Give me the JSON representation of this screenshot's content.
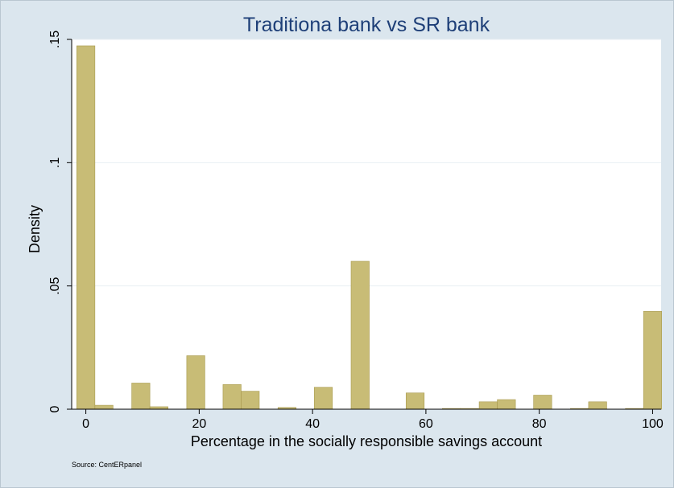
{
  "chart_data": {
    "type": "bar",
    "title": "Traditiona bank vs SR bank",
    "xlabel": "Percentage in the socially responsible savings account",
    "ylabel": "Density",
    "note": "Source: CentERpanel",
    "xlim": [
      -2.5,
      101.5
    ],
    "ylim": [
      0,
      0.15
    ],
    "bin_width": 3.2,
    "x_ticks": [
      {
        "value": 0,
        "label": "0"
      },
      {
        "value": 20,
        "label": "20"
      },
      {
        "value": 40,
        "label": "40"
      },
      {
        "value": 60,
        "label": "60"
      },
      {
        "value": 80,
        "label": "80"
      },
      {
        "value": 100,
        "label": "100"
      }
    ],
    "y_ticks": [
      {
        "value": 0,
        "label": "0"
      },
      {
        "value": 0.05,
        "label": ".05"
      },
      {
        "value": 0.1,
        "label": ".1"
      },
      {
        "value": 0.15,
        "label": ".15"
      }
    ],
    "bars": [
      {
        "x": 0.0,
        "y": 0.1474
      },
      {
        "x": 3.2,
        "y": 0.0016
      },
      {
        "x": 9.7,
        "y": 0.0106
      },
      {
        "x": 12.9,
        "y": 0.001
      },
      {
        "x": 19.4,
        "y": 0.0217
      },
      {
        "x": 25.8,
        "y": 0.01
      },
      {
        "x": 29.0,
        "y": 0.0073
      },
      {
        "x": 35.5,
        "y": 0.0007
      },
      {
        "x": 41.9,
        "y": 0.0089
      },
      {
        "x": 48.4,
        "y": 0.06
      },
      {
        "x": 58.1,
        "y": 0.0066
      },
      {
        "x": 64.5,
        "y": 0.0003
      },
      {
        "x": 67.7,
        "y": 0.0003
      },
      {
        "x": 71.0,
        "y": 0.003
      },
      {
        "x": 74.2,
        "y": 0.0039
      },
      {
        "x": 80.6,
        "y": 0.0057
      },
      {
        "x": 87.1,
        "y": 0.0003
      },
      {
        "x": 90.3,
        "y": 0.003
      },
      {
        "x": 96.8,
        "y": 0.0003
      },
      {
        "x": 100.0,
        "y": 0.0397
      }
    ],
    "grid": true,
    "colors": {
      "bar_fill": "#c8bc76",
      "bar_stroke": "#a89a4e",
      "background": "#dbe6ee",
      "plot_background": "#ffffff",
      "title": "#1e3f78"
    }
  }
}
